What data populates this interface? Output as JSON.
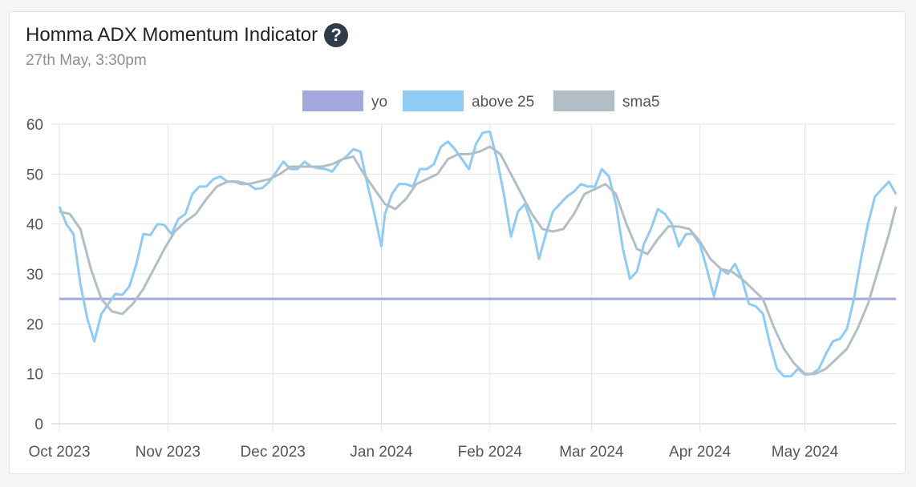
{
  "header": {
    "title": "Homma ADX Momentum Indicator",
    "help_icon": "question-circle-icon",
    "subtitle": "27th May, 3:30pm"
  },
  "chart_data": {
    "type": "line",
    "ylim": [
      0,
      60
    ],
    "yticks": [
      0,
      10,
      20,
      30,
      40,
      50,
      60
    ],
    "grid": true,
    "legend": "top-center",
    "x_range": [
      "2023-10-01",
      "2024-05-27"
    ],
    "xticks": [
      {
        "label": "Oct 2023",
        "date": "2023-10-01"
      },
      {
        "label": "Nov 2023",
        "date": "2023-11-01"
      },
      {
        "label": "Dec 2023",
        "date": "2023-12-01"
      },
      {
        "label": "Jan 2024",
        "date": "2024-01-01"
      },
      {
        "label": "Feb 2024",
        "date": "2024-02-01"
      },
      {
        "label": "Mar 2024",
        "date": "2024-03-01"
      },
      {
        "label": "Apr 2024",
        "date": "2024-04-01"
      },
      {
        "label": "May 2024",
        "date": "2024-05-01"
      }
    ],
    "series": [
      {
        "name": "yo",
        "color": "#a3a8dc",
        "type": "hline",
        "value": 25
      },
      {
        "name": "above 25",
        "color": "#8fcbf2",
        "points": [
          [
            "2023-10-01",
            43.5
          ],
          [
            "2023-10-03",
            40
          ],
          [
            "2023-10-05",
            38
          ],
          [
            "2023-10-07",
            28
          ],
          [
            "2023-10-09",
            21
          ],
          [
            "2023-10-11",
            16.5
          ],
          [
            "2023-10-13",
            22
          ],
          [
            "2023-10-15",
            24
          ],
          [
            "2023-10-17",
            26
          ],
          [
            "2023-10-19",
            25.8
          ],
          [
            "2023-10-21",
            27.5
          ],
          [
            "2023-10-23",
            32
          ],
          [
            "2023-10-25",
            38
          ],
          [
            "2023-10-27",
            37.8
          ],
          [
            "2023-10-29",
            40
          ],
          [
            "2023-10-31",
            39.8
          ],
          [
            "2023-11-02",
            38
          ],
          [
            "2023-11-04",
            41
          ],
          [
            "2023-11-06",
            42
          ],
          [
            "2023-11-08",
            46
          ],
          [
            "2023-11-10",
            47.5
          ],
          [
            "2023-11-12",
            47.5
          ],
          [
            "2023-11-14",
            49
          ],
          [
            "2023-11-16",
            49.5
          ],
          [
            "2023-11-18",
            48.5
          ],
          [
            "2023-11-20",
            48.5
          ],
          [
            "2023-11-22",
            48
          ],
          [
            "2023-11-24",
            48
          ],
          [
            "2023-11-26",
            47
          ],
          [
            "2023-11-28",
            47.2
          ],
          [
            "2023-11-30",
            48.5
          ],
          [
            "2023-12-02",
            50.5
          ],
          [
            "2023-12-04",
            52.5
          ],
          [
            "2023-12-06",
            51
          ],
          [
            "2023-12-08",
            51
          ],
          [
            "2023-12-10",
            52.5
          ],
          [
            "2023-12-12",
            51.5
          ],
          [
            "2023-12-14",
            51.2
          ],
          [
            "2023-12-16",
            51
          ],
          [
            "2023-12-18",
            50.5
          ],
          [
            "2023-12-20",
            52.5
          ],
          [
            "2023-12-22",
            53.5
          ],
          [
            "2023-12-24",
            55
          ],
          [
            "2023-12-26",
            54.5
          ],
          [
            "2023-12-28",
            48
          ],
          [
            "2023-12-30",
            42
          ],
          [
            "2024-01-01",
            35.5
          ],
          [
            "2024-01-02",
            42
          ],
          [
            "2024-01-04",
            46
          ],
          [
            "2024-01-06",
            48
          ],
          [
            "2024-01-08",
            48
          ],
          [
            "2024-01-10",
            47.5
          ],
          [
            "2024-01-12",
            51
          ],
          [
            "2024-01-14",
            51
          ],
          [
            "2024-01-16",
            52
          ],
          [
            "2024-01-18",
            55.5
          ],
          [
            "2024-01-20",
            56.5
          ],
          [
            "2024-01-22",
            55
          ],
          [
            "2024-01-24",
            53
          ],
          [
            "2024-01-26",
            51
          ],
          [
            "2024-01-28",
            56
          ],
          [
            "2024-01-30",
            58.3
          ],
          [
            "2024-02-01",
            58.5
          ],
          [
            "2024-02-03",
            53
          ],
          [
            "2024-02-05",
            46
          ],
          [
            "2024-02-07",
            37.5
          ],
          [
            "2024-02-09",
            42.5
          ],
          [
            "2024-02-11",
            44
          ],
          [
            "2024-02-13",
            40
          ],
          [
            "2024-02-15",
            33
          ],
          [
            "2024-02-17",
            38
          ],
          [
            "2024-02-19",
            42.5
          ],
          [
            "2024-02-21",
            44
          ],
          [
            "2024-02-23",
            45.5
          ],
          [
            "2024-02-25",
            46.5
          ],
          [
            "2024-02-27",
            48
          ],
          [
            "2024-02-29",
            47.5
          ],
          [
            "2024-03-02",
            47.5
          ],
          [
            "2024-03-04",
            51
          ],
          [
            "2024-03-06",
            49.5
          ],
          [
            "2024-03-08",
            44
          ],
          [
            "2024-03-10",
            35
          ],
          [
            "2024-03-12",
            29
          ],
          [
            "2024-03-14",
            30.5
          ],
          [
            "2024-03-16",
            36
          ],
          [
            "2024-03-18",
            39
          ],
          [
            "2024-03-20",
            43
          ],
          [
            "2024-03-22",
            42
          ],
          [
            "2024-03-24",
            40
          ],
          [
            "2024-03-26",
            35.5
          ],
          [
            "2024-03-28",
            38
          ],
          [
            "2024-03-30",
            38
          ],
          [
            "2024-04-01",
            36
          ],
          [
            "2024-04-03",
            31
          ],
          [
            "2024-04-05",
            25.5
          ],
          [
            "2024-04-07",
            31
          ],
          [
            "2024-04-09",
            30
          ],
          [
            "2024-04-11",
            32
          ],
          [
            "2024-04-13",
            29
          ],
          [
            "2024-04-15",
            24
          ],
          [
            "2024-04-17",
            23.5
          ],
          [
            "2024-04-19",
            22
          ],
          [
            "2024-04-21",
            16
          ],
          [
            "2024-04-23",
            11
          ],
          [
            "2024-04-25",
            9.5
          ],
          [
            "2024-04-27",
            9.5
          ],
          [
            "2024-04-29",
            11
          ],
          [
            "2024-05-01",
            9.8
          ],
          [
            "2024-05-03",
            10
          ],
          [
            "2024-05-05",
            11
          ],
          [
            "2024-05-07",
            14
          ],
          [
            "2024-05-09",
            16.5
          ],
          [
            "2024-05-11",
            17
          ],
          [
            "2024-05-13",
            19
          ],
          [
            "2024-05-15",
            25
          ],
          [
            "2024-05-17",
            33
          ],
          [
            "2024-05-19",
            40
          ],
          [
            "2024-05-21",
            45.5
          ],
          [
            "2024-05-23",
            47
          ],
          [
            "2024-05-25",
            48.5
          ],
          [
            "2024-05-27",
            46
          ]
        ]
      },
      {
        "name": "sma5",
        "color": "#b2bec6",
        "points": [
          [
            "2023-10-01",
            42.5
          ],
          [
            "2023-10-04",
            42
          ],
          [
            "2023-10-07",
            39
          ],
          [
            "2023-10-10",
            31
          ],
          [
            "2023-10-13",
            25
          ],
          [
            "2023-10-16",
            22.5
          ],
          [
            "2023-10-19",
            22
          ],
          [
            "2023-10-22",
            24
          ],
          [
            "2023-10-25",
            27
          ],
          [
            "2023-10-28",
            31
          ],
          [
            "2023-10-31",
            35
          ],
          [
            "2023-11-03",
            38.5
          ],
          [
            "2023-11-06",
            40.5
          ],
          [
            "2023-11-09",
            42
          ],
          [
            "2023-11-12",
            45
          ],
          [
            "2023-11-15",
            47.5
          ],
          [
            "2023-11-18",
            48.5
          ],
          [
            "2023-11-21",
            48.5
          ],
          [
            "2023-11-24",
            48
          ],
          [
            "2023-11-27",
            48.5
          ],
          [
            "2023-11-30",
            49
          ],
          [
            "2023-12-03",
            50
          ],
          [
            "2023-12-06",
            51.5
          ],
          [
            "2023-12-09",
            51.5
          ],
          [
            "2023-12-12",
            51.5
          ],
          [
            "2023-12-15",
            51.5
          ],
          [
            "2023-12-18",
            52
          ],
          [
            "2023-12-21",
            53
          ],
          [
            "2023-12-24",
            53.5
          ],
          [
            "2023-12-27",
            50
          ],
          [
            "2023-12-30",
            47
          ],
          [
            "2024-01-02",
            44
          ],
          [
            "2024-01-05",
            43
          ],
          [
            "2024-01-08",
            45
          ],
          [
            "2024-01-11",
            48
          ],
          [
            "2024-01-14",
            49
          ],
          [
            "2024-01-17",
            50
          ],
          [
            "2024-01-20",
            53
          ],
          [
            "2024-01-23",
            54
          ],
          [
            "2024-01-26",
            54
          ],
          [
            "2024-01-29",
            54.5
          ],
          [
            "2024-02-01",
            55.5
          ],
          [
            "2024-02-04",
            54
          ],
          [
            "2024-02-07",
            50
          ],
          [
            "2024-02-10",
            46
          ],
          [
            "2024-02-13",
            42
          ],
          [
            "2024-02-16",
            39
          ],
          [
            "2024-02-19",
            38.5
          ],
          [
            "2024-02-22",
            39
          ],
          [
            "2024-02-25",
            42
          ],
          [
            "2024-02-28",
            46
          ],
          [
            "2024-03-02",
            47
          ],
          [
            "2024-03-05",
            48
          ],
          [
            "2024-03-08",
            46
          ],
          [
            "2024-03-11",
            40
          ],
          [
            "2024-03-14",
            35
          ],
          [
            "2024-03-17",
            34
          ],
          [
            "2024-03-20",
            37
          ],
          [
            "2024-03-23",
            39.5
          ],
          [
            "2024-03-26",
            39.5
          ],
          [
            "2024-03-29",
            39
          ],
          [
            "2024-04-01",
            36.5
          ],
          [
            "2024-04-04",
            33
          ],
          [
            "2024-04-07",
            31
          ],
          [
            "2024-04-10",
            30.5
          ],
          [
            "2024-04-13",
            29
          ],
          [
            "2024-04-16",
            27
          ],
          [
            "2024-04-19",
            25
          ],
          [
            "2024-04-22",
            19.5
          ],
          [
            "2024-04-25",
            15
          ],
          [
            "2024-04-28",
            12
          ],
          [
            "2024-05-01",
            10
          ],
          [
            "2024-05-04",
            10
          ],
          [
            "2024-05-07",
            11
          ],
          [
            "2024-05-10",
            13
          ],
          [
            "2024-05-13",
            15
          ],
          [
            "2024-05-16",
            19
          ],
          [
            "2024-05-19",
            24
          ],
          [
            "2024-05-22",
            31
          ],
          [
            "2024-05-25",
            38
          ],
          [
            "2024-05-27",
            43.5
          ]
        ]
      }
    ]
  }
}
